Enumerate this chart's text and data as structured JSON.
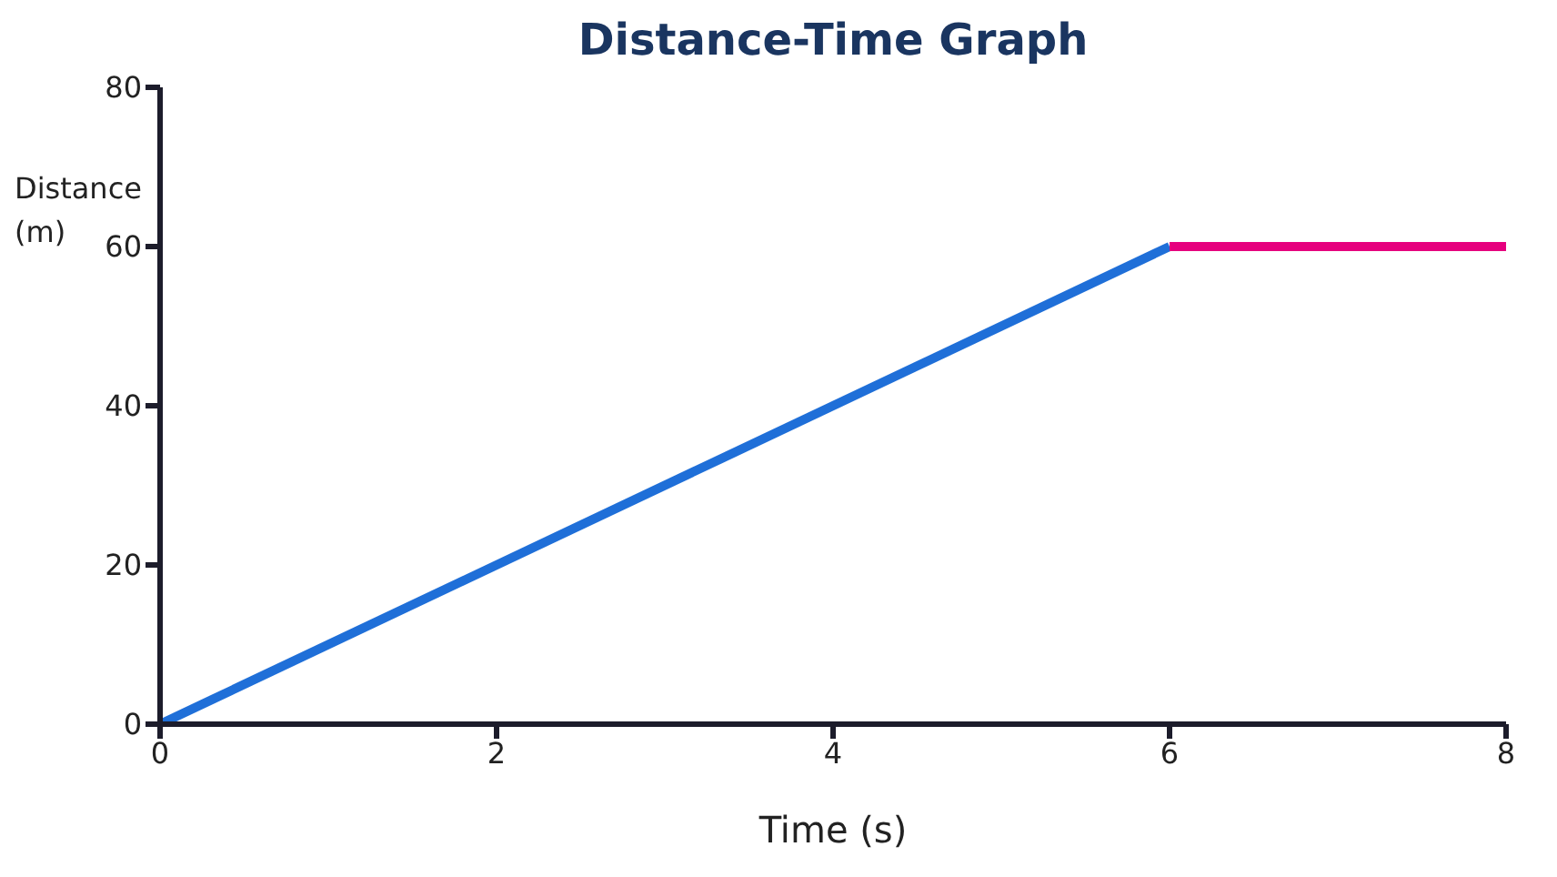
{
  "chart_data": {
    "type": "line",
    "title": "Distance-Time Graph",
    "xlabel": "Time (s)",
    "ylabel": "Distance (m)",
    "xlim": [
      0,
      8
    ],
    "xticks": [
      0,
      2,
      4,
      6,
      8
    ],
    "ylim": [
      0,
      80
    ],
    "yticks": [
      0,
      20,
      40,
      60,
      80
    ],
    "grid": false,
    "legend": false,
    "marker": "none",
    "line_style": "solid",
    "series": [
      {
        "color": "#1f6fd8",
        "x": [
          0,
          6
        ],
        "values": [
          0,
          60
        ]
      },
      {
        "color": "#e6007e",
        "x": [
          6,
          8
        ],
        "values": [
          60,
          60
        ]
      }
    ]
  }
}
